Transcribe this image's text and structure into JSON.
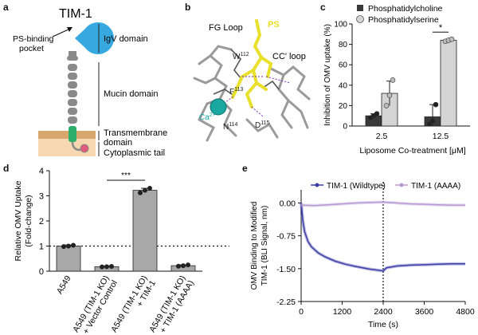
{
  "panels": {
    "a": {
      "label": "a",
      "title": "TIM-1",
      "pocket_label_1": "PS-binding",
      "pocket_label_2": "pocket",
      "domains": [
        "IgV domain",
        "Mucin domain",
        "Transmembrane",
        "domain",
        "Cytoplasmic tail"
      ],
      "colors": {
        "igv": "#36a9e1",
        "stalk": "#8a8a8a",
        "tm": "#2eae6b",
        "membrane": "#d7a76e",
        "cyto": "#f6d7b0",
        "tail_dot": "#e05a7a"
      }
    },
    "b": {
      "label": "b",
      "texts": {
        "fg_loop": "FG Loop",
        "cc_loop": "CC' loop",
        "ps": "PS",
        "w112": "W",
        "w112_sup": "112",
        "f113": "F",
        "f113_sup": "113",
        "ca": "Ca",
        "ca_sup": "2+",
        "n114": "N",
        "n114_sup": "114",
        "d115": "D",
        "d115_sup": "115"
      }
    },
    "c": {
      "label": "c"
    },
    "d": {
      "label": "d"
    },
    "e": {
      "label": "e"
    }
  },
  "chart_data": [
    {
      "id": "c",
      "type": "bar",
      "ylabel": "Inhibition of OMV uptake (%)",
      "xlabel": "Liposome Co-treatment [μM]",
      "categories": [
        "2.5",
        "12.5"
      ],
      "ylim": [
        0,
        100
      ],
      "yticks": [
        "0",
        "20",
        "40",
        "60",
        "80",
        "100"
      ],
      "series": [
        {
          "name": "Phosphatidylcholine",
          "color": "#3a3a3a",
          "values": [
            10,
            9
          ],
          "errors": [
            2,
            12
          ],
          "points": [
            [
              8,
              10,
              12
            ],
            [
              2,
              5,
              21
            ]
          ]
        },
        {
          "name": "Phosphatidylserine",
          "color": "#d4d4d4",
          "values": [
            32,
            84
          ],
          "errors": [
            12,
            1
          ],
          "points": [
            [
              20,
              30,
              45
            ],
            [
              83,
              84,
              85
            ]
          ]
        }
      ],
      "significance": [
        {
          "category_index": 1,
          "text": "*"
        }
      ]
    },
    {
      "id": "d",
      "type": "bar",
      "ylabel": "Relative OMV Uptake",
      "ylabel2": "(Fold-change)",
      "categories": [
        "A549",
        "A549 (TIM-1 KO)\n+ Vector Control",
        "A549 (TIM-1 KO)\n+ TIM-1",
        "A549 (TIM-1 KO)\n+ TIM-1 (AAAA)"
      ],
      "values": [
        1.0,
        0.18,
        3.22,
        0.22
      ],
      "errors": [
        0.04,
        0.02,
        0.08,
        0.03
      ],
      "points": [
        [
          0.98,
          1.0,
          1.03
        ],
        [
          0.17,
          0.18,
          0.19
        ],
        [
          3.12,
          3.22,
          3.3
        ],
        [
          0.2,
          0.22,
          0.25
        ]
      ],
      "ylim": [
        0,
        4
      ],
      "yticks": [
        "0",
        "1",
        "2",
        "3",
        "4"
      ],
      "reference_line": 1,
      "color": "#a8a8a8",
      "significance": [
        {
          "from": 1,
          "to": 2,
          "text": "***"
        }
      ]
    },
    {
      "id": "e",
      "type": "line",
      "ylabel": "OMV Binding to Modified",
      "ylabel2": "TIM-1 (BLI Signal, nm)",
      "xlabel": "Time (s)",
      "xlim": [
        0,
        4800
      ],
      "ylim": [
        -2.25,
        0.3
      ],
      "xticks": [
        "0",
        "1200",
        "2400",
        "3600",
        "4800"
      ],
      "yticks": [
        "0.00",
        "-0.75",
        "-1.50",
        "-2.25"
      ],
      "dashed_x": 2400,
      "series": [
        {
          "name": "TIM-1 (Wildtype)",
          "color": "#3d3fa6",
          "x": [
            0,
            50,
            100,
            200,
            300,
            500,
            700,
            1000,
            1300,
            1600,
            2000,
            2400,
            2500,
            2800,
            3200,
            3600,
            4000,
            4400,
            4800
          ],
          "y": [
            0,
            -0.4,
            -0.65,
            -0.88,
            -1.0,
            -1.14,
            -1.23,
            -1.33,
            -1.4,
            -1.45,
            -1.51,
            -1.55,
            -1.48,
            -1.44,
            -1.42,
            -1.41,
            -1.4,
            -1.39,
            -1.39
          ]
        },
        {
          "name": "TIM-1 (AAAA)",
          "color": "#b79ad4",
          "x": [
            0,
            400,
            800,
            1200,
            1600,
            2000,
            2400,
            2800,
            3200,
            3600,
            4000,
            4400,
            4800
          ],
          "y": [
            -0.05,
            -0.06,
            -0.04,
            -0.02,
            0.0,
            0.01,
            0.02,
            0.0,
            -0.02,
            -0.03,
            -0.04,
            -0.05,
            -0.05
          ]
        }
      ]
    }
  ]
}
